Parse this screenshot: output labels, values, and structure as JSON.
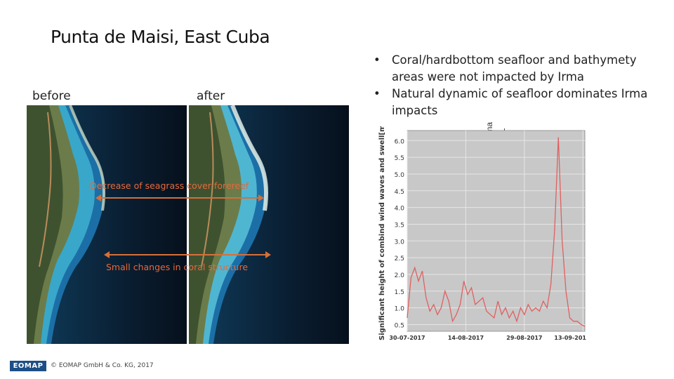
{
  "slide": {
    "title": "Punta de Maisi, East Cuba",
    "label_before": "before",
    "label_after": "after",
    "bullets": [
      "Coral/hardbottom seafloor and bathymety areas were not impacted by Irma",
      "Natural dynamic of seafloor dominates Irma impacts"
    ],
    "annotation_top": "Decrease of seagrass cover forereef",
    "annotation_bottom": "Small changes in coral structure",
    "irma_label": "Irma",
    "footer_logo": "EOMAP",
    "footer_copyright": "© EOMAP GmbH & Co. KG, 2017"
  },
  "chart_data": {
    "type": "line",
    "ylabel": "Significant height of combind wind waves and swell[m]",
    "yticks": [
      "0.5",
      "1.0",
      "1.5",
      "2.0",
      "2.5",
      "3.0",
      "3.5",
      "4.0",
      "4.5",
      "5.0",
      "5.5",
      "6.0"
    ],
    "xticks": [
      "30-07-2017",
      "14-08-2017",
      "29-08-2017",
      "13-09-201"
    ],
    "ylim": [
      0.3,
      6.3
    ],
    "xlim": [
      0,
      47
    ],
    "grid": true,
    "series": [
      {
        "color": "#e06060",
        "x": [
          0,
          1,
          2,
          3,
          4,
          5,
          6,
          7,
          8,
          9,
          10,
          11,
          12,
          13,
          14,
          15,
          16,
          17,
          18,
          19,
          20,
          21,
          22,
          23,
          24,
          25,
          26,
          27,
          28,
          29,
          30,
          31,
          32,
          33,
          34,
          35,
          36,
          37,
          38,
          39,
          40,
          41,
          42,
          43,
          44,
          45,
          46,
          47
        ],
        "values": [
          0.7,
          1.9,
          2.2,
          1.8,
          2.1,
          1.3,
          0.9,
          1.1,
          0.8,
          1.0,
          1.5,
          1.2,
          0.6,
          0.8,
          1.1,
          1.8,
          1.4,
          1.6,
          1.1,
          1.2,
          1.3,
          0.9,
          0.8,
          0.7,
          1.2,
          0.8,
          1.0,
          0.7,
          0.9,
          0.6,
          1.0,
          0.8,
          1.1,
          0.9,
          1.0,
          0.9,
          1.2,
          1.0,
          1.7,
          3.3,
          6.1,
          3.0,
          1.5,
          0.7,
          0.6,
          0.6,
          0.5,
          0.45
        ]
      }
    ]
  }
}
